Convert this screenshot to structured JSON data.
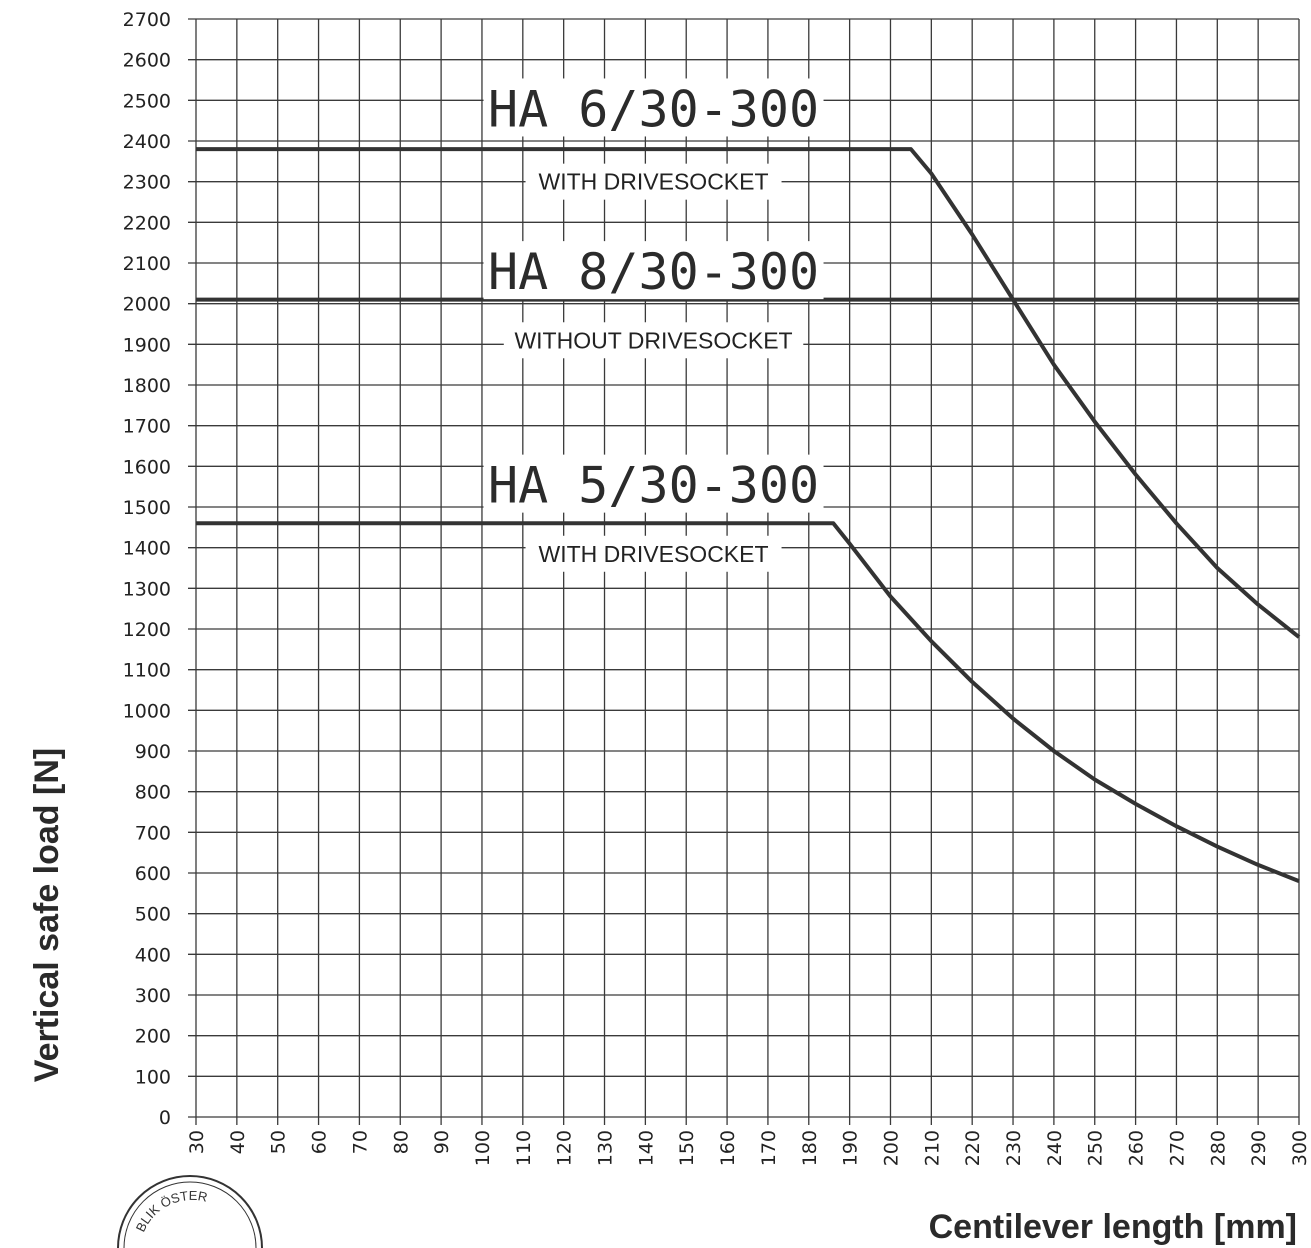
{
  "chart_data": {
    "type": "line",
    "xlabel": "Centilever length [mm]",
    "ylabel": "Vertical safe load [N]",
    "xlim": [
      30,
      300
    ],
    "ylim": [
      0,
      2700
    ],
    "x_ticks": [
      30,
      40,
      50,
      60,
      70,
      80,
      90,
      100,
      110,
      120,
      130,
      140,
      150,
      160,
      170,
      180,
      190,
      200,
      210,
      220,
      230,
      240,
      250,
      260,
      270,
      280,
      290,
      300
    ],
    "y_ticks": [
      0,
      100,
      200,
      300,
      400,
      500,
      600,
      700,
      800,
      900,
      1000,
      1100,
      1200,
      1300,
      1400,
      1500,
      1600,
      1700,
      1800,
      1900,
      2000,
      2100,
      2200,
      2300,
      2400,
      2500,
      2600,
      2700
    ],
    "grid": true,
    "series": [
      {
        "name": "HA 6/30-300",
        "note": "WITH DRIVESOCKET",
        "x": [
          30,
          205,
          210,
          220,
          230,
          240,
          250,
          260,
          270,
          280,
          290,
          300
        ],
        "y": [
          2380,
          2380,
          2320,
          2170,
          2010,
          1850,
          1710,
          1580,
          1460,
          1350,
          1260,
          1180
        ]
      },
      {
        "name": "HA 8/30-300",
        "note": "WITHOUT DRIVESOCKET",
        "x": [
          30,
          300
        ],
        "y": [
          2010,
          2010
        ]
      },
      {
        "name": "HA 5/30-300",
        "note": "WITH DRIVESOCKET",
        "x": [
          30,
          186,
          190,
          200,
          210,
          220,
          230,
          240,
          250,
          260,
          270,
          280,
          290,
          300
        ],
        "y": [
          1460,
          1460,
          1410,
          1280,
          1170,
          1070,
          980,
          900,
          830,
          770,
          715,
          665,
          620,
          580
        ]
      }
    ]
  },
  "seal": {
    "text": "BLIK ÖSTER"
  }
}
